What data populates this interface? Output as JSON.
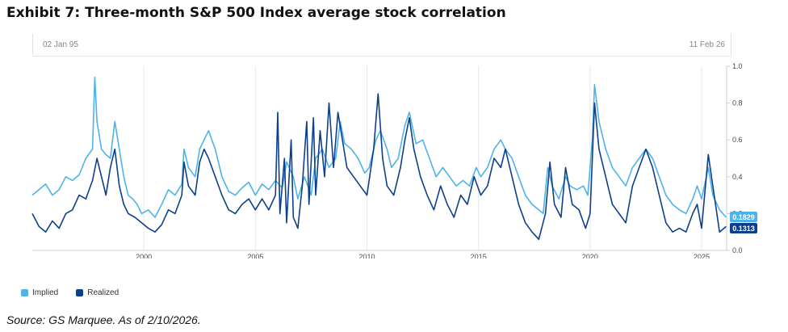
{
  "exhibit": {
    "title": "Exhibit 7: Three-month S&P 500 Index average stock correlation",
    "source": "Source: GS Marquee. As of 2/10/2026."
  },
  "range_selector": {
    "start_label": "02 Jan 95",
    "end_label": "11 Feb 26"
  },
  "chart_data": {
    "type": "line",
    "title": "",
    "xlabel": "",
    "ylabel": "",
    "x_ticks": [
      "2000",
      "2005",
      "2010",
      "2015",
      "2020",
      "2025"
    ],
    "y_ticks": [
      "0.0",
      "0.2",
      "0.4",
      "0.6",
      "0.8",
      "1.0"
    ],
    "xlim": [
      1995.0,
      2026.12
    ],
    "ylim": [
      0,
      1
    ],
    "grid": "vertical",
    "legend_position": "bottom-left",
    "series": [
      {
        "name": "Implied",
        "color": "#4db3ea",
        "last_value_label": "0.1829",
        "points": [
          [
            1995.0,
            0.3
          ],
          [
            1995.3,
            0.33
          ],
          [
            1995.6,
            0.36
          ],
          [
            1995.9,
            0.3
          ],
          [
            1996.2,
            0.33
          ],
          [
            1996.5,
            0.4
          ],
          [
            1996.8,
            0.38
          ],
          [
            1997.1,
            0.41
          ],
          [
            1997.4,
            0.5
          ],
          [
            1997.7,
            0.55
          ],
          [
            1997.8,
            0.94
          ],
          [
            1997.9,
            0.7
          ],
          [
            1998.1,
            0.55
          ],
          [
            1998.3,
            0.52
          ],
          [
            1998.5,
            0.5
          ],
          [
            1998.7,
            0.7
          ],
          [
            1998.9,
            0.55
          ],
          [
            1999.1,
            0.4
          ],
          [
            1999.3,
            0.3
          ],
          [
            1999.5,
            0.28
          ],
          [
            1999.7,
            0.25
          ],
          [
            1999.9,
            0.2
          ],
          [
            2000.2,
            0.22
          ],
          [
            2000.5,
            0.18
          ],
          [
            2000.8,
            0.25
          ],
          [
            2001.1,
            0.33
          ],
          [
            2001.4,
            0.3
          ],
          [
            2001.7,
            0.36
          ],
          [
            2001.8,
            0.55
          ],
          [
            2002.0,
            0.45
          ],
          [
            2002.3,
            0.4
          ],
          [
            2002.5,
            0.55
          ],
          [
            2002.7,
            0.6
          ],
          [
            2002.9,
            0.65
          ],
          [
            2003.2,
            0.55
          ],
          [
            2003.5,
            0.4
          ],
          [
            2003.8,
            0.32
          ],
          [
            2004.1,
            0.3
          ],
          [
            2004.4,
            0.34
          ],
          [
            2004.7,
            0.37
          ],
          [
            2005.0,
            0.3
          ],
          [
            2005.3,
            0.36
          ],
          [
            2005.6,
            0.33
          ],
          [
            2005.9,
            0.38
          ],
          [
            2006.2,
            0.34
          ],
          [
            2006.4,
            0.48
          ],
          [
            2006.7,
            0.4
          ],
          [
            2006.9,
            0.28
          ],
          [
            2007.2,
            0.4
          ],
          [
            2007.5,
            0.3
          ],
          [
            2007.7,
            0.5
          ],
          [
            2008.0,
            0.55
          ],
          [
            2008.3,
            0.45
          ],
          [
            2008.6,
            0.5
          ],
          [
            2008.8,
            0.7
          ],
          [
            2009.0,
            0.58
          ],
          [
            2009.3,
            0.55
          ],
          [
            2009.6,
            0.5
          ],
          [
            2009.9,
            0.42
          ],
          [
            2010.1,
            0.45
          ],
          [
            2010.4,
            0.6
          ],
          [
            2010.6,
            0.65
          ],
          [
            2010.9,
            0.55
          ],
          [
            2011.1,
            0.45
          ],
          [
            2011.4,
            0.5
          ],
          [
            2011.7,
            0.68
          ],
          [
            2011.9,
            0.75
          ],
          [
            2012.2,
            0.58
          ],
          [
            2012.5,
            0.6
          ],
          [
            2012.8,
            0.5
          ],
          [
            2013.1,
            0.4
          ],
          [
            2013.4,
            0.45
          ],
          [
            2013.7,
            0.4
          ],
          [
            2014.0,
            0.35
          ],
          [
            2014.3,
            0.38
          ],
          [
            2014.6,
            0.35
          ],
          [
            2014.9,
            0.45
          ],
          [
            2015.1,
            0.4
          ],
          [
            2015.4,
            0.45
          ],
          [
            2015.7,
            0.55
          ],
          [
            2016.0,
            0.6
          ],
          [
            2016.2,
            0.55
          ],
          [
            2016.5,
            0.5
          ],
          [
            2016.8,
            0.4
          ],
          [
            2017.1,
            0.3
          ],
          [
            2017.4,
            0.25
          ],
          [
            2017.7,
            0.22
          ],
          [
            2017.9,
            0.2
          ],
          [
            2018.1,
            0.45
          ],
          [
            2018.3,
            0.35
          ],
          [
            2018.6,
            0.28
          ],
          [
            2018.9,
            0.4
          ],
          [
            2019.1,
            0.35
          ],
          [
            2019.4,
            0.33
          ],
          [
            2019.7,
            0.35
          ],
          [
            2019.9,
            0.3
          ],
          [
            2020.1,
            0.6
          ],
          [
            2020.2,
            0.9
          ],
          [
            2020.4,
            0.7
          ],
          [
            2020.7,
            0.55
          ],
          [
            2021.0,
            0.45
          ],
          [
            2021.3,
            0.4
          ],
          [
            2021.6,
            0.35
          ],
          [
            2021.9,
            0.45
          ],
          [
            2022.2,
            0.5
          ],
          [
            2022.5,
            0.55
          ],
          [
            2022.8,
            0.5
          ],
          [
            2023.1,
            0.4
          ],
          [
            2023.4,
            0.3
          ],
          [
            2023.7,
            0.25
          ],
          [
            2024.0,
            0.22
          ],
          [
            2024.3,
            0.2
          ],
          [
            2024.6,
            0.28
          ],
          [
            2024.8,
            0.35
          ],
          [
            2025.0,
            0.28
          ],
          [
            2025.3,
            0.45
          ],
          [
            2025.5,
            0.3
          ],
          [
            2025.8,
            0.22
          ],
          [
            2026.1,
            0.18
          ]
        ]
      },
      {
        "name": "Realized",
        "color": "#0d3f8c",
        "last_value_label": "0.1313",
        "points": [
          [
            1995.0,
            0.2
          ],
          [
            1995.3,
            0.13
          ],
          [
            1995.6,
            0.1
          ],
          [
            1995.9,
            0.16
          ],
          [
            1996.2,
            0.12
          ],
          [
            1996.5,
            0.2
          ],
          [
            1996.8,
            0.22
          ],
          [
            1997.1,
            0.3
          ],
          [
            1997.4,
            0.28
          ],
          [
            1997.7,
            0.38
          ],
          [
            1997.9,
            0.5
          ],
          [
            1998.1,
            0.4
          ],
          [
            1998.3,
            0.3
          ],
          [
            1998.5,
            0.45
          ],
          [
            1998.7,
            0.55
          ],
          [
            1998.9,
            0.35
          ],
          [
            1999.1,
            0.25
          ],
          [
            1999.3,
            0.2
          ],
          [
            1999.6,
            0.18
          ],
          [
            1999.9,
            0.15
          ],
          [
            2000.2,
            0.12
          ],
          [
            2000.5,
            0.1
          ],
          [
            2000.8,
            0.14
          ],
          [
            2001.1,
            0.22
          ],
          [
            2001.4,
            0.2
          ],
          [
            2001.7,
            0.3
          ],
          [
            2001.8,
            0.48
          ],
          [
            2002.0,
            0.35
          ],
          [
            2002.3,
            0.3
          ],
          [
            2002.5,
            0.48
          ],
          [
            2002.7,
            0.55
          ],
          [
            2002.9,
            0.5
          ],
          [
            2003.2,
            0.4
          ],
          [
            2003.5,
            0.3
          ],
          [
            2003.8,
            0.22
          ],
          [
            2004.1,
            0.2
          ],
          [
            2004.4,
            0.25
          ],
          [
            2004.7,
            0.28
          ],
          [
            2005.0,
            0.22
          ],
          [
            2005.3,
            0.28
          ],
          [
            2005.6,
            0.22
          ],
          [
            2005.9,
            0.3
          ],
          [
            2006.0,
            0.75
          ],
          [
            2006.1,
            0.2
          ],
          [
            2006.3,
            0.5
          ],
          [
            2006.4,
            0.15
          ],
          [
            2006.6,
            0.6
          ],
          [
            2006.7,
            0.18
          ],
          [
            2006.9,
            0.12
          ],
          [
            2007.1,
            0.35
          ],
          [
            2007.3,
            0.7
          ],
          [
            2007.4,
            0.25
          ],
          [
            2007.6,
            0.72
          ],
          [
            2007.7,
            0.3
          ],
          [
            2007.9,
            0.65
          ],
          [
            2008.1,
            0.4
          ],
          [
            2008.3,
            0.8
          ],
          [
            2008.5,
            0.45
          ],
          [
            2008.7,
            0.75
          ],
          [
            2008.9,
            0.6
          ],
          [
            2009.1,
            0.45
          ],
          [
            2009.4,
            0.4
          ],
          [
            2009.7,
            0.35
          ],
          [
            2010.0,
            0.3
          ],
          [
            2010.3,
            0.55
          ],
          [
            2010.5,
            0.85
          ],
          [
            2010.7,
            0.5
          ],
          [
            2010.9,
            0.35
          ],
          [
            2011.2,
            0.3
          ],
          [
            2011.5,
            0.45
          ],
          [
            2011.7,
            0.6
          ],
          [
            2011.9,
            0.72
          ],
          [
            2012.1,
            0.55
          ],
          [
            2012.4,
            0.4
          ],
          [
            2012.7,
            0.3
          ],
          [
            2013.0,
            0.22
          ],
          [
            2013.3,
            0.35
          ],
          [
            2013.6,
            0.25
          ],
          [
            2013.9,
            0.18
          ],
          [
            2014.2,
            0.3
          ],
          [
            2014.5,
            0.25
          ],
          [
            2014.8,
            0.4
          ],
          [
            2015.1,
            0.3
          ],
          [
            2015.4,
            0.35
          ],
          [
            2015.7,
            0.5
          ],
          [
            2016.0,
            0.45
          ],
          [
            2016.2,
            0.55
          ],
          [
            2016.5,
            0.4
          ],
          [
            2016.8,
            0.25
          ],
          [
            2017.1,
            0.15
          ],
          [
            2017.4,
            0.1
          ],
          [
            2017.7,
            0.06
          ],
          [
            2018.0,
            0.2
          ],
          [
            2018.2,
            0.48
          ],
          [
            2018.4,
            0.25
          ],
          [
            2018.7,
            0.18
          ],
          [
            2018.9,
            0.45
          ],
          [
            2019.2,
            0.25
          ],
          [
            2019.5,
            0.22
          ],
          [
            2019.8,
            0.12
          ],
          [
            2020.0,
            0.2
          ],
          [
            2020.2,
            0.8
          ],
          [
            2020.4,
            0.55
          ],
          [
            2020.7,
            0.4
          ],
          [
            2021.0,
            0.25
          ],
          [
            2021.3,
            0.2
          ],
          [
            2021.6,
            0.15
          ],
          [
            2021.9,
            0.35
          ],
          [
            2022.2,
            0.45
          ],
          [
            2022.5,
            0.55
          ],
          [
            2022.8,
            0.45
          ],
          [
            2023.1,
            0.3
          ],
          [
            2023.4,
            0.15
          ],
          [
            2023.7,
            0.1
          ],
          [
            2024.0,
            0.12
          ],
          [
            2024.3,
            0.1
          ],
          [
            2024.6,
            0.2
          ],
          [
            2024.8,
            0.25
          ],
          [
            2025.0,
            0.12
          ],
          [
            2025.3,
            0.52
          ],
          [
            2025.5,
            0.35
          ],
          [
            2025.8,
            0.1
          ],
          [
            2026.1,
            0.13
          ]
        ]
      }
    ]
  }
}
